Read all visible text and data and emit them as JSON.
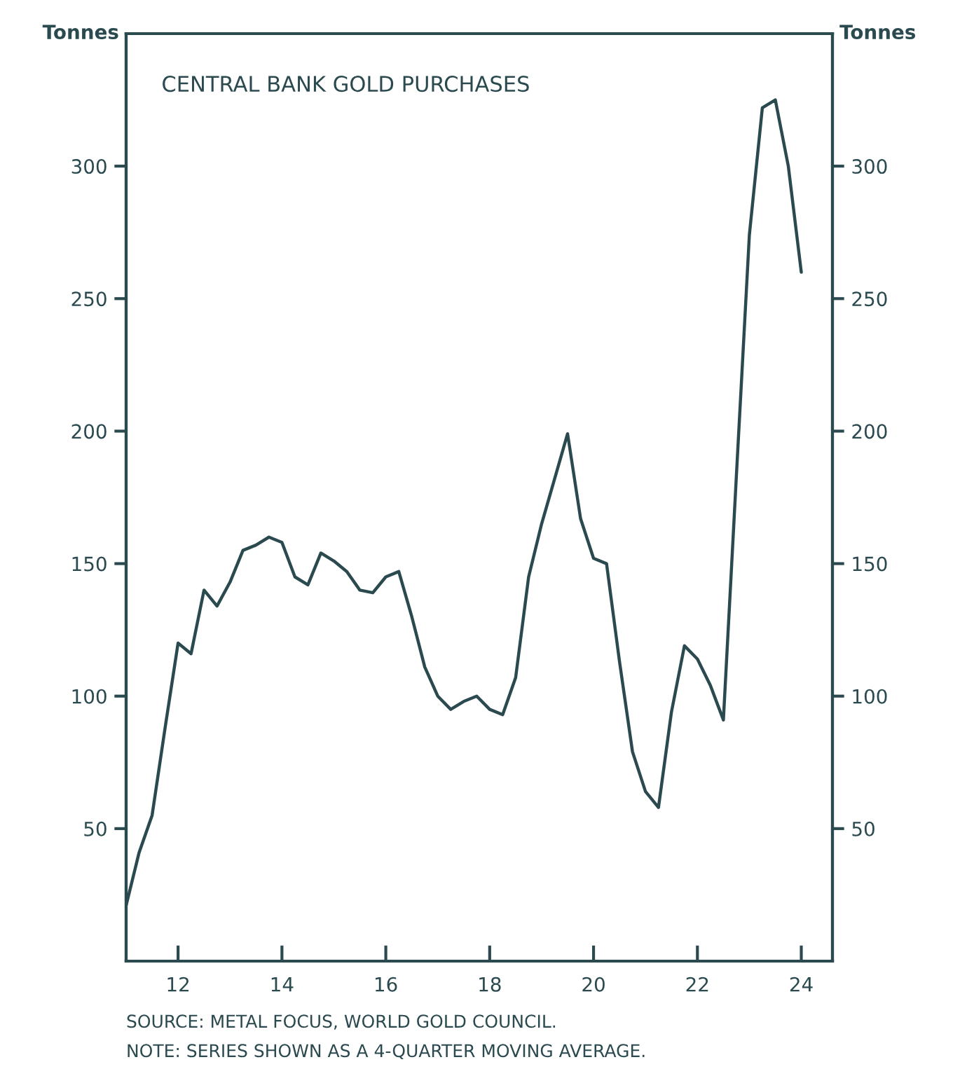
{
  "chart_data": {
    "type": "line",
    "title": "CENTRAL BANK GOLD PURCHASES",
    "ylabel": "Tonnes",
    "y2label": "Tonnes",
    "annotations": [
      "SOURCE: METAL FOCUS, WORLD GOLD COUNCIL.",
      "NOTE: SERIES SHOWN AS A 4-QUARTER MOVING AVERAGE."
    ],
    "x": [
      2011.0,
      2011.25,
      2011.5,
      2011.75,
      2012.0,
      2012.25,
      2012.5,
      2012.75,
      2013.0,
      2013.25,
      2013.5,
      2013.75,
      2014.0,
      2014.25,
      2014.5,
      2014.75,
      2015.0,
      2015.25,
      2015.5,
      2015.75,
      2016.0,
      2016.25,
      2016.5,
      2016.75,
      2017.0,
      2017.25,
      2017.5,
      2017.75,
      2018.0,
      2018.25,
      2018.5,
      2018.75,
      2019.0,
      2019.25,
      2019.5,
      2019.75,
      2020.0,
      2020.25,
      2020.5,
      2020.75,
      2021.0,
      2021.25,
      2021.5,
      2021.75,
      2022.0,
      2022.25,
      2022.5,
      2022.75,
      2023.0,
      2023.25,
      2023.5,
      2023.75,
      2024.0
    ],
    "series": [
      {
        "color": "#2b4a4f",
        "values": [
          21,
          41,
          55,
          88,
          120,
          116,
          140,
          134,
          143,
          155,
          157,
          160,
          158,
          145,
          142,
          154,
          151,
          147,
          140,
          139,
          145,
          147,
          130,
          111,
          100,
          95,
          98,
          100,
          95,
          93,
          107,
          145,
          165,
          182,
          199,
          167,
          152,
          150,
          113,
          79,
          64,
          58,
          94,
          119,
          114,
          104,
          91,
          183,
          274,
          322,
          325,
          300,
          260
        ]
      }
    ],
    "xlim": [
      2011,
      2024.6
    ],
    "xticks": [
      {
        "value": 2012,
        "label": "12"
      },
      {
        "value": 2014,
        "label": "14"
      },
      {
        "value": 2016,
        "label": "16"
      },
      {
        "value": 2018,
        "label": "18"
      },
      {
        "value": 2020,
        "label": "20"
      },
      {
        "value": 2022,
        "label": "22"
      },
      {
        "value": 2024,
        "label": "24"
      }
    ],
    "ylim": [
      0,
      350
    ],
    "yticks": [
      50,
      100,
      150,
      200,
      250,
      300
    ],
    "y2lim": [
      0,
      350
    ],
    "y2ticks": [
      50,
      100,
      150,
      200,
      250,
      300
    ],
    "grid": false,
    "legend": false,
    "line_style": "solid"
  }
}
